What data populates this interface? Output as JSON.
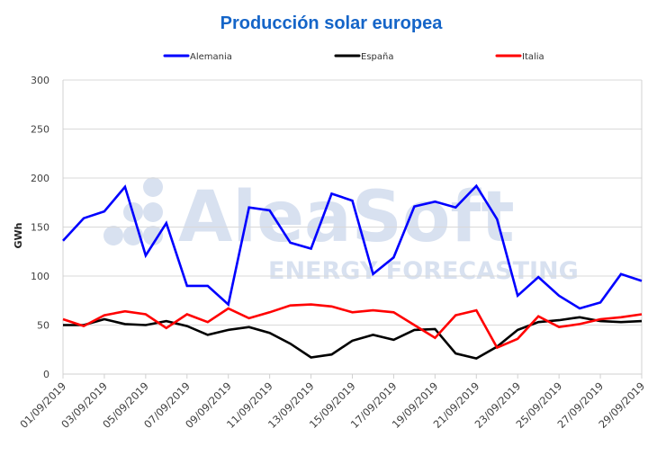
{
  "chart_data": {
    "type": "line",
    "title": "Producción solar europea",
    "xlabel": "",
    "ylabel": "GWh",
    "ylim": [
      0,
      300
    ],
    "yticks": [
      "0",
      "50",
      "100",
      "150",
      "200",
      "250",
      "300"
    ],
    "ytick_values": [
      0,
      50,
      100,
      150,
      200,
      250,
      300
    ],
    "grid": true,
    "legend_position": "top-center",
    "x": [
      "01/09/2019",
      "02/09/2019",
      "03/09/2019",
      "04/09/2019",
      "05/09/2019",
      "06/09/2019",
      "07/09/2019",
      "08/09/2019",
      "09/09/2019",
      "10/09/2019",
      "11/09/2019",
      "12/09/2019",
      "13/09/2019",
      "14/09/2019",
      "15/09/2019",
      "16/09/2019",
      "17/09/2019",
      "18/09/2019",
      "19/09/2019",
      "20/09/2019",
      "21/09/2019",
      "22/09/2019",
      "23/09/2019",
      "24/09/2019",
      "25/09/2019",
      "26/09/2019",
      "27/09/2019",
      "28/09/2019",
      "29/09/2019"
    ],
    "xtick_labels": [
      "01/09/2019",
      "03/09/2019",
      "05/09/2019",
      "07/09/2019",
      "09/09/2019",
      "11/09/2019",
      "13/09/2019",
      "15/09/2019",
      "17/09/2019",
      "19/09/2019",
      "21/09/2019",
      "23/09/2019",
      "25/09/2019",
      "27/09/2019",
      "29/09/2019"
    ],
    "series": [
      {
        "name": "Alemania",
        "color": "#0000ff",
        "values": [
          136,
          159,
          166,
          191,
          121,
          154,
          90,
          90,
          71,
          170,
          167,
          134,
          128,
          184,
          177,
          102,
          119,
          171,
          176,
          170,
          192,
          158,
          80,
          99,
          80,
          67,
          73,
          102,
          95
        ]
      },
      {
        "name": "España",
        "color": "#000000",
        "values": [
          50,
          50,
          56,
          51,
          50,
          54,
          49,
          40,
          45,
          48,
          42,
          31,
          17,
          20,
          34,
          40,
          35,
          45,
          46,
          21,
          16,
          28,
          45,
          53,
          55,
          58,
          54,
          53,
          54
        ]
      },
      {
        "name": "Italia",
        "color": "#ff0000",
        "values": [
          56,
          49,
          60,
          64,
          61,
          47,
          61,
          53,
          67,
          57,
          63,
          70,
          71,
          69,
          63,
          65,
          63,
          50,
          37,
          60,
          65,
          27,
          36,
          59,
          48,
          51,
          56,
          58,
          61
        ]
      }
    ]
  },
  "watermark": {
    "brand": "AleaSoft",
    "tagline": "ENERGY FORECASTING",
    "color": "#d8e1f0"
  }
}
